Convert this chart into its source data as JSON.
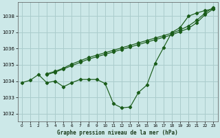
{
  "title": "Graphe pression niveau de la mer (hPa)",
  "background_color": "#cce8e8",
  "grid_color": "#aacccc",
  "line_color": "#1a5c1a",
  "xlim": [
    -0.5,
    23.5
  ],
  "ylim": [
    1031.5,
    1038.85
  ],
  "yticks": [
    1032,
    1033,
    1034,
    1035,
    1036,
    1037,
    1038
  ],
  "xticks": [
    0,
    1,
    2,
    3,
    4,
    5,
    6,
    7,
    8,
    9,
    10,
    11,
    12,
    13,
    14,
    15,
    16,
    17,
    18,
    19,
    20,
    21,
    22,
    23
  ],
  "series1_x": [
    0,
    1,
    2,
    3,
    4,
    5,
    6,
    7,
    8,
    9,
    10,
    11,
    12,
    13,
    14,
    15,
    16,
    17,
    18,
    19,
    20,
    21,
    22,
    23
  ],
  "series1_y": [
    1033.9,
    1034.05,
    1034.4,
    1033.9,
    1034.0,
    1033.65,
    1033.9,
    1034.1,
    1034.1,
    1034.1,
    1033.85,
    1032.6,
    1032.35,
    1032.4,
    1033.3,
    1033.75,
    1035.1,
    1036.05,
    1037.0,
    1037.3,
    1038.0,
    1038.2,
    1038.35,
    1038.45
  ],
  "series2_x": [
    3,
    4,
    5,
    6,
    7,
    8,
    9,
    10,
    11,
    12,
    13,
    14,
    15,
    16,
    17,
    18,
    19,
    20,
    21,
    22,
    23
  ],
  "series2_y": [
    1034.4,
    1034.55,
    1034.75,
    1034.95,
    1035.15,
    1035.35,
    1035.5,
    1035.65,
    1035.8,
    1035.95,
    1036.1,
    1036.25,
    1036.4,
    1036.55,
    1036.7,
    1036.85,
    1037.05,
    1037.25,
    1037.6,
    1038.1,
    1038.45
  ],
  "series3_x": [
    3,
    4,
    5,
    6,
    7,
    8,
    9,
    10,
    11,
    12,
    13,
    14,
    15,
    16,
    17,
    18,
    19,
    20,
    21,
    22,
    23
  ],
  "series3_y": [
    1034.45,
    1034.6,
    1034.8,
    1035.05,
    1035.25,
    1035.45,
    1035.6,
    1035.75,
    1035.9,
    1036.05,
    1036.2,
    1036.35,
    1036.5,
    1036.65,
    1036.8,
    1036.95,
    1037.15,
    1037.4,
    1037.75,
    1038.2,
    1038.55
  ]
}
